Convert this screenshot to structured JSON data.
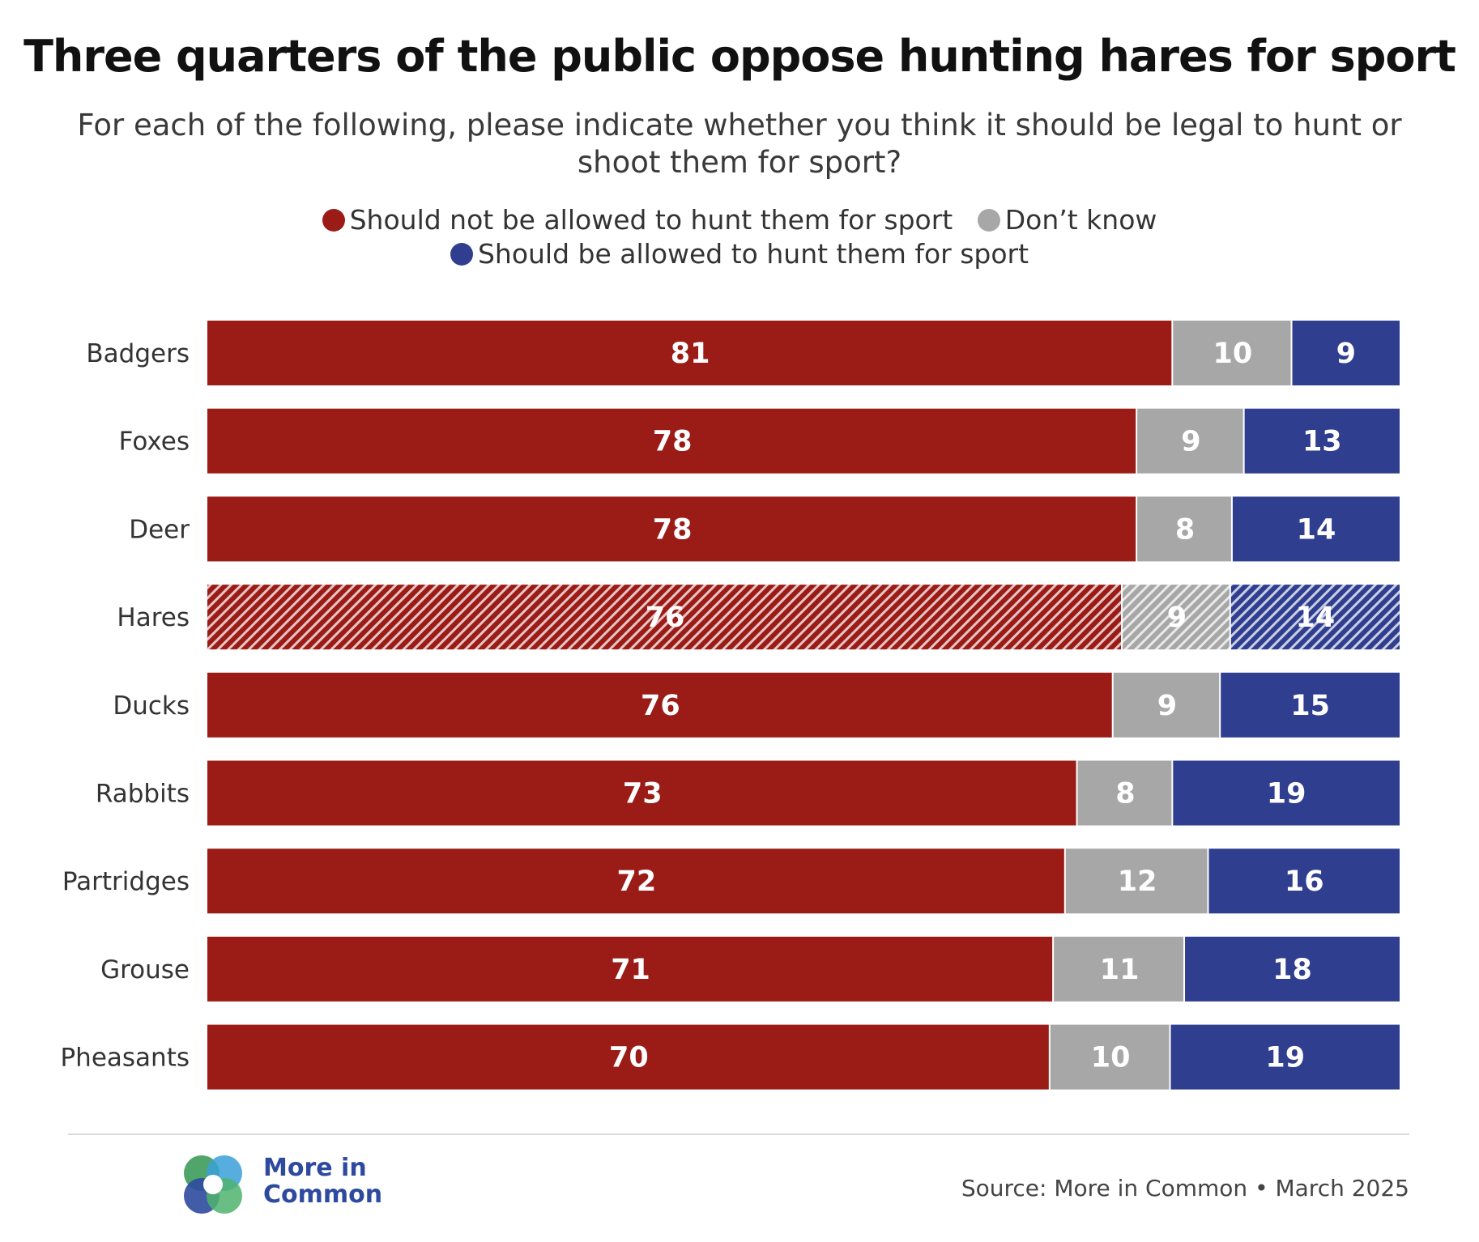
{
  "title": "Three quarters of the public oppose hunting hares for sport",
  "subtitle": "For each of the following, please indicate whether you think it should be legal to hunt or shoot them for sport?",
  "legend": [
    {
      "label": "Should not be allowed to hunt them for sport",
      "color": "#9b1c17"
    },
    {
      "label": "Don’t know",
      "color": "#a7a7a7"
    },
    {
      "label": "Should be allowed to hunt them for sport",
      "color": "#2f3e8f"
    }
  ],
  "chart_data": {
    "type": "bar",
    "orientation": "horizontal",
    "stacked": true,
    "categories": [
      "Badgers",
      "Foxes",
      "Deer",
      "Hares",
      "Ducks",
      "Rabbits",
      "Partridges",
      "Grouse",
      "Pheasants"
    ],
    "series": [
      {
        "name": "Should not be allowed to hunt them for sport",
        "color": "#9b1c17",
        "values": [
          81,
          78,
          78,
          76,
          76,
          73,
          72,
          71,
          70
        ]
      },
      {
        "name": "Don’t know",
        "color": "#a7a7a7",
        "values": [
          10,
          9,
          8,
          9,
          9,
          8,
          12,
          11,
          10
        ]
      },
      {
        "name": "Should be allowed to hunt them for sport",
        "color": "#2f3e8f",
        "values": [
          9,
          13,
          14,
          14,
          15,
          19,
          16,
          18,
          19
        ]
      }
    ],
    "highlighted_category": "Hares",
    "data_labels": true,
    "grid": false,
    "legend_position": "top"
  },
  "footer": {
    "brand_line1": "More in",
    "brand_line2": "Common",
    "source": "Source: More in Common • March 2025",
    "logo_icon": "more-in-common-logo-icon"
  }
}
